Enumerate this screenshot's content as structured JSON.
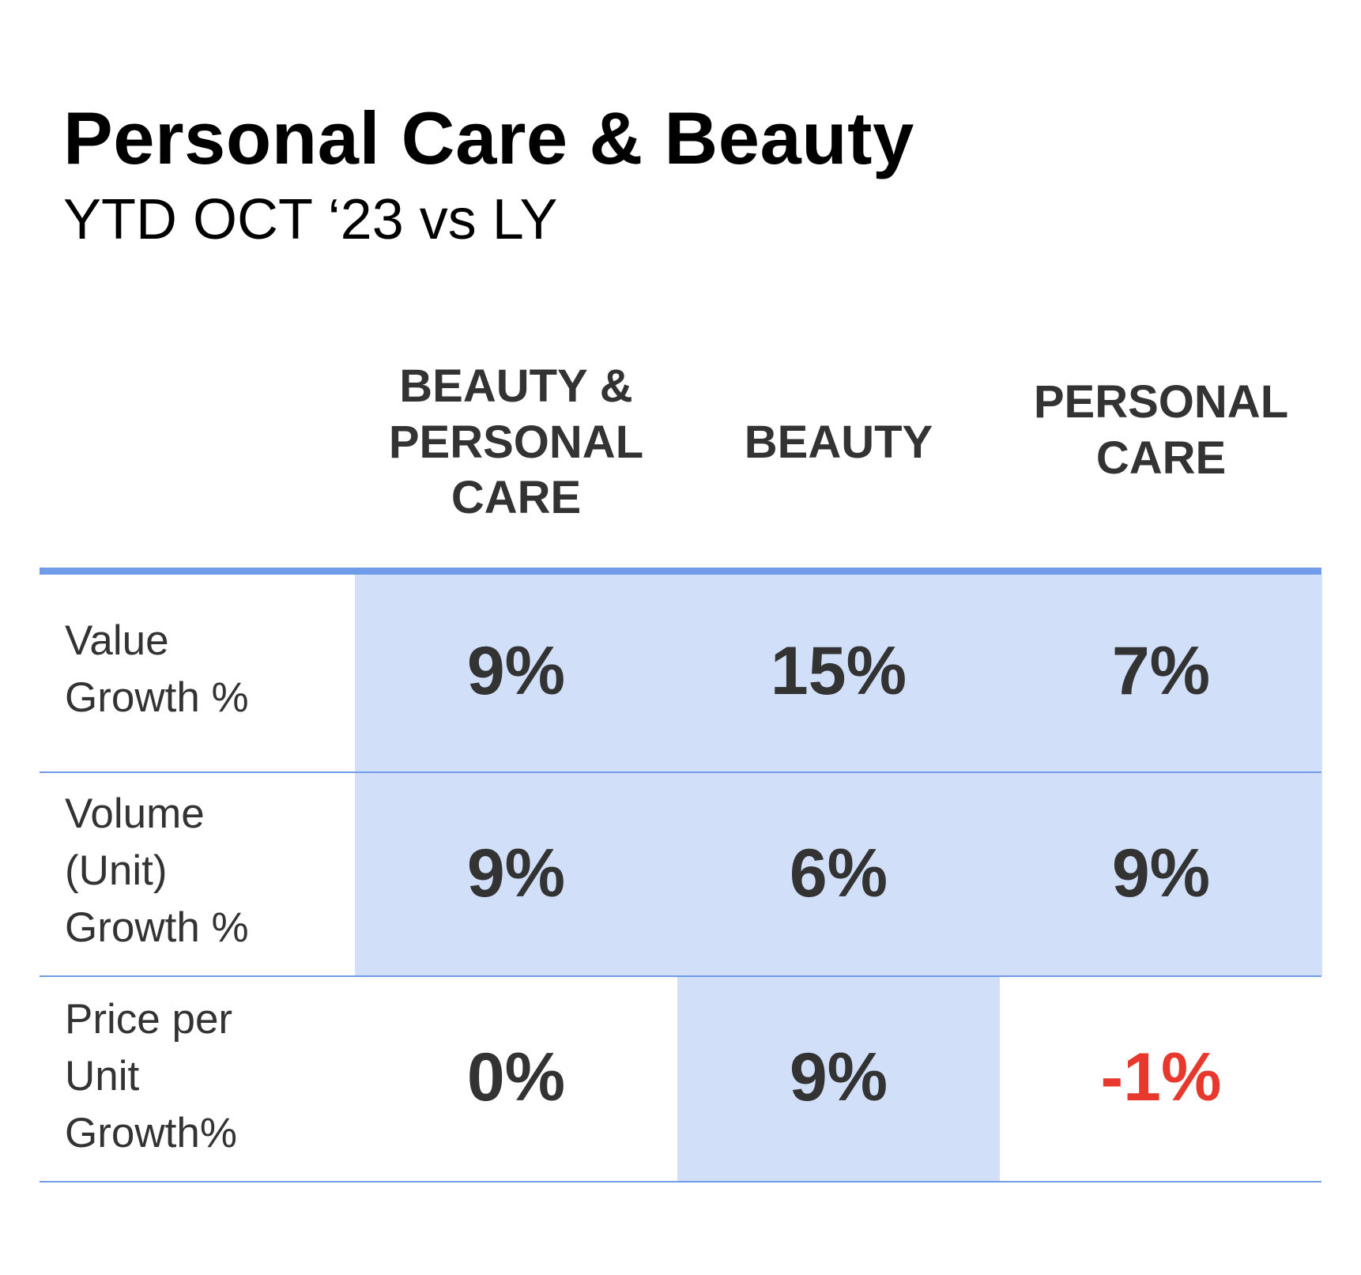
{
  "chart_data": {
    "type": "table",
    "title": "Personal Care & Beauty",
    "subtitle": "YTD OCT ‘23 vs LY",
    "columns": [
      {
        "lines": [
          "BEAUTY &",
          "PERSONAL",
          "CARE"
        ]
      },
      {
        "lines": [
          "BEAUTY"
        ]
      },
      {
        "lines": [
          "PERSONAL",
          "CARE"
        ]
      }
    ],
    "rows": [
      {
        "label_lines": [
          "Value",
          "Growth %"
        ],
        "values": [
          "9%",
          "15%",
          "7%"
        ],
        "highlighted": [
          true,
          true,
          true
        ]
      },
      {
        "label_lines": [
          "Volume",
          "(Unit)",
          "Growth %"
        ],
        "values": [
          "9%",
          "6%",
          "9%"
        ],
        "highlighted": [
          true,
          true,
          true
        ]
      },
      {
        "label_lines": [
          "Price per",
          "Unit",
          "Growth%"
        ],
        "values": [
          "0%",
          "9%",
          "-1%"
        ],
        "highlighted": [
          false,
          true,
          false
        ]
      }
    ],
    "colors": {
      "highlight": "#d1dff8",
      "rule": "#6f9be8",
      "text": "#333333",
      "negative": "#e8372c"
    }
  }
}
